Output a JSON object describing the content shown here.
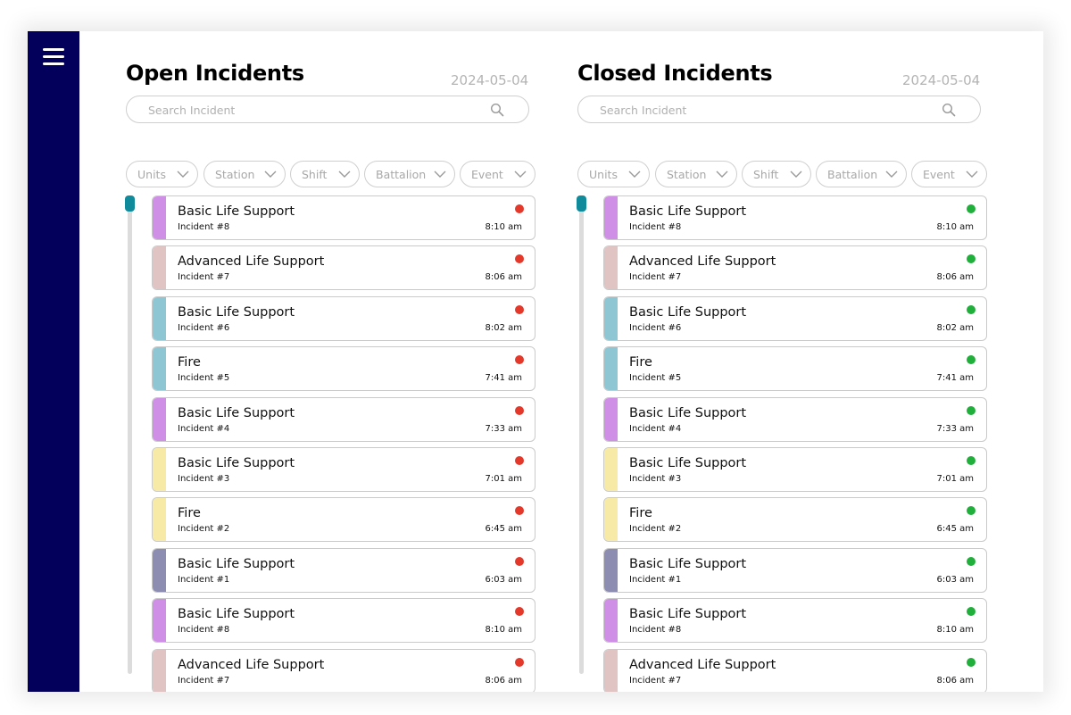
{
  "menu_icon": "hamburger-menu-icon",
  "colors": {
    "sidebar": "#02005a",
    "scroll_thumb": "#0f8b9c",
    "open_dot": "#e3382a",
    "closed_dot": "#1faf3a",
    "purple": "#cf8fe6",
    "rose": "#e0c4c4",
    "teal": "#8ec7d3",
    "yellow": "#f6eaa6",
    "slate": "#8c8db0"
  },
  "panels": [
    {
      "key": "open",
      "title": "Open Incidents",
      "date": "2024-05-04",
      "search_placeholder": "Search Incident",
      "filters": [
        "Units",
        "Station",
        "Shift",
        "Battalion",
        "Event"
      ],
      "status_color": "#e3382a",
      "incidents": [
        {
          "title": "Basic Life Support",
          "number": "Incident #8",
          "time": "8:10 am",
          "color": "#cf8fe6"
        },
        {
          "title": "Advanced Life Support",
          "number": "Incident #7",
          "time": "8:06 am",
          "color": "#e0c4c4"
        },
        {
          "title": "Basic Life Support",
          "number": "Incident #6",
          "time": "8:02 am",
          "color": "#8ec7d3"
        },
        {
          "title": "Fire",
          "number": "Incident #5",
          "time": "7:41 am",
          "color": "#8ec7d3"
        },
        {
          "title": "Basic Life Support",
          "number": "Incident #4",
          "time": "7:33 am",
          "color": "#cf8fe6"
        },
        {
          "title": "Basic Life Support",
          "number": "Incident #3",
          "time": "7:01 am",
          "color": "#f6eaa6"
        },
        {
          "title": "Fire",
          "number": "Incident #2",
          "time": "6:45 am",
          "color": "#f6eaa6"
        },
        {
          "title": "Basic Life Support",
          "number": "Incident #1",
          "time": "6:03 am",
          "color": "#8c8db0"
        },
        {
          "title": "Basic Life Support",
          "number": "Incident #8",
          "time": "8:10 am",
          "color": "#cf8fe6"
        },
        {
          "title": "Advanced Life Support",
          "number": "Incident #7",
          "time": "8:06 am",
          "color": "#e0c4c4"
        }
      ]
    },
    {
      "key": "closed",
      "title": "Closed Incidents",
      "date": "2024-05-04",
      "search_placeholder": "Search Incident",
      "filters": [
        "Units",
        "Station",
        "Shift",
        "Battalion",
        "Event"
      ],
      "status_color": "#1faf3a",
      "incidents": [
        {
          "title": "Basic Life Support",
          "number": "Incident #8",
          "time": "8:10 am",
          "color": "#cf8fe6"
        },
        {
          "title": "Advanced Life Support",
          "number": "Incident #7",
          "time": "8:06 am",
          "color": "#e0c4c4"
        },
        {
          "title": "Basic Life Support",
          "number": "Incident #6",
          "time": "8:02 am",
          "color": "#8ec7d3"
        },
        {
          "title": "Fire",
          "number": "Incident #5",
          "time": "7:41 am",
          "color": "#8ec7d3"
        },
        {
          "title": "Basic Life Support",
          "number": "Incident #4",
          "time": "7:33 am",
          "color": "#cf8fe6"
        },
        {
          "title": "Basic Life Support",
          "number": "Incident #3",
          "time": "7:01 am",
          "color": "#f6eaa6"
        },
        {
          "title": "Fire",
          "number": "Incident #2",
          "time": "6:45 am",
          "color": "#f6eaa6"
        },
        {
          "title": "Basic Life Support",
          "number": "Incident #1",
          "time": "6:03 am",
          "color": "#8c8db0"
        },
        {
          "title": "Basic Life Support",
          "number": "Incident #8",
          "time": "8:10 am",
          "color": "#cf8fe6"
        },
        {
          "title": "Advanced Life Support",
          "number": "Incident #7",
          "time": "8:06 am",
          "color": "#e0c4c4"
        }
      ]
    }
  ]
}
